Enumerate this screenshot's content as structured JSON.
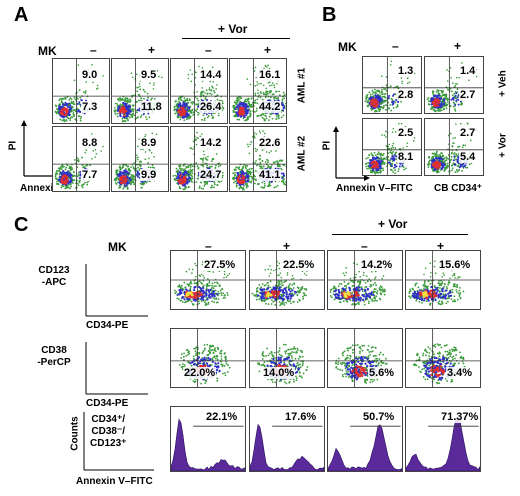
{
  "panels": {
    "A": {
      "label": "A",
      "mk": "MK",
      "minus": "–",
      "plus": "+",
      "vor": "+ Vor",
      "row1_label": "AML #1",
      "row2_label": "AML #2",
      "y_axis": "PI",
      "x_axis": "Annexin V–FITC",
      "rows": [
        [
          {
            "ur": "9.0",
            "lr": "7.3"
          },
          {
            "ur": "9.5",
            "lr": "11.8"
          },
          {
            "ur": "14.4",
            "lr": "26.4"
          },
          {
            "ur": "16.1",
            "lr": "44.2"
          }
        ],
        [
          {
            "ur": "8.8",
            "lr": "7.7"
          },
          {
            "ur": "8.9",
            "lr": "9.9"
          },
          {
            "ur": "14.2",
            "lr": "24.7"
          },
          {
            "ur": "22.6",
            "lr": "41.1"
          }
        ]
      ]
    },
    "B": {
      "label": "B",
      "mk": "MK",
      "minus": "–",
      "plus": "+",
      "row1_label": "+ Veh",
      "row2_label": "+ Vor",
      "y_axis": "PI",
      "x_axis": "Annexin V–FITC",
      "cell_label": "CB CD34⁺",
      "rows": [
        [
          {
            "ur": "1.3",
            "lr": "2.8"
          },
          {
            "ur": "1.4",
            "lr": "2.7"
          }
        ],
        [
          {
            "ur": "2.5",
            "lr": "8.1"
          },
          {
            "ur": "2.7",
            "lr": "5.4"
          }
        ]
      ]
    },
    "C": {
      "label": "C",
      "mk": "MK",
      "minus": "–",
      "plus": "+",
      "vor": "+ Vor",
      "row1_y": "CD123\n-APC",
      "row1_x": "CD34-PE",
      "row2_y": "CD38\n-PerCP",
      "row2_x": "CD34-PE",
      "row3_y": "Counts",
      "row3_gate": "CD34⁺/\nCD38⁻/\nCD123⁺",
      "row3_x": "Annexin V–FITC",
      "row1_values": [
        "27.5%",
        "22.5%",
        "14.2%",
        "15.6%"
      ],
      "row2_values": [
        "22.0%",
        "14.0%",
        "5.6%",
        "3.4%"
      ],
      "row3_values": [
        "22.1%",
        "17.6%",
        "50.7%",
        "71.37%"
      ]
    }
  },
  "colors": {
    "blue": "#3030c8",
    "green": "#3a9a3a",
    "red": "#e03030",
    "purple": "#5a2a9a",
    "yellow": "#f0e040"
  }
}
